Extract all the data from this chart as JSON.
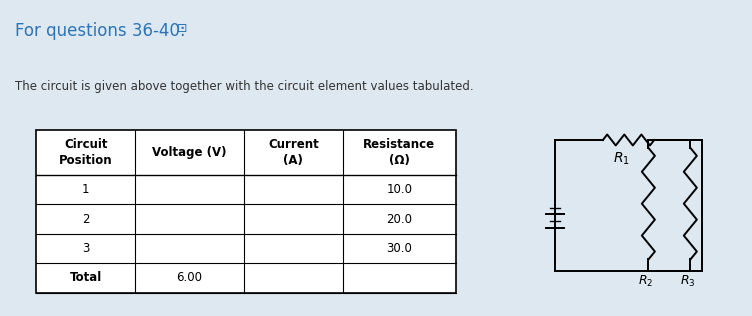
{
  "title": "For questions 36-40:",
  "subtitle": "The circuit is given above together with the circuit element values tabulated.",
  "outer_bg": "#dde8f0",
  "lower_bg": "#eef3f7",
  "col_headers": [
    "Circuit\nPosition",
    "Voltage (V)",
    "Current\n(A)",
    "Resistance\n(Ω)"
  ],
  "rows": [
    [
      "1",
      "",
      "",
      "10.0"
    ],
    [
      "2",
      "",
      "",
      "20.0"
    ],
    [
      "3",
      "",
      "",
      "30.0"
    ],
    [
      "Total",
      "6.00",
      "",
      ""
    ]
  ],
  "title_color": "#2e74b5",
  "text_color": "#000000",
  "title_font_size": 12,
  "subtitle_font_size": 8.5,
  "table_font_size": 8.5
}
